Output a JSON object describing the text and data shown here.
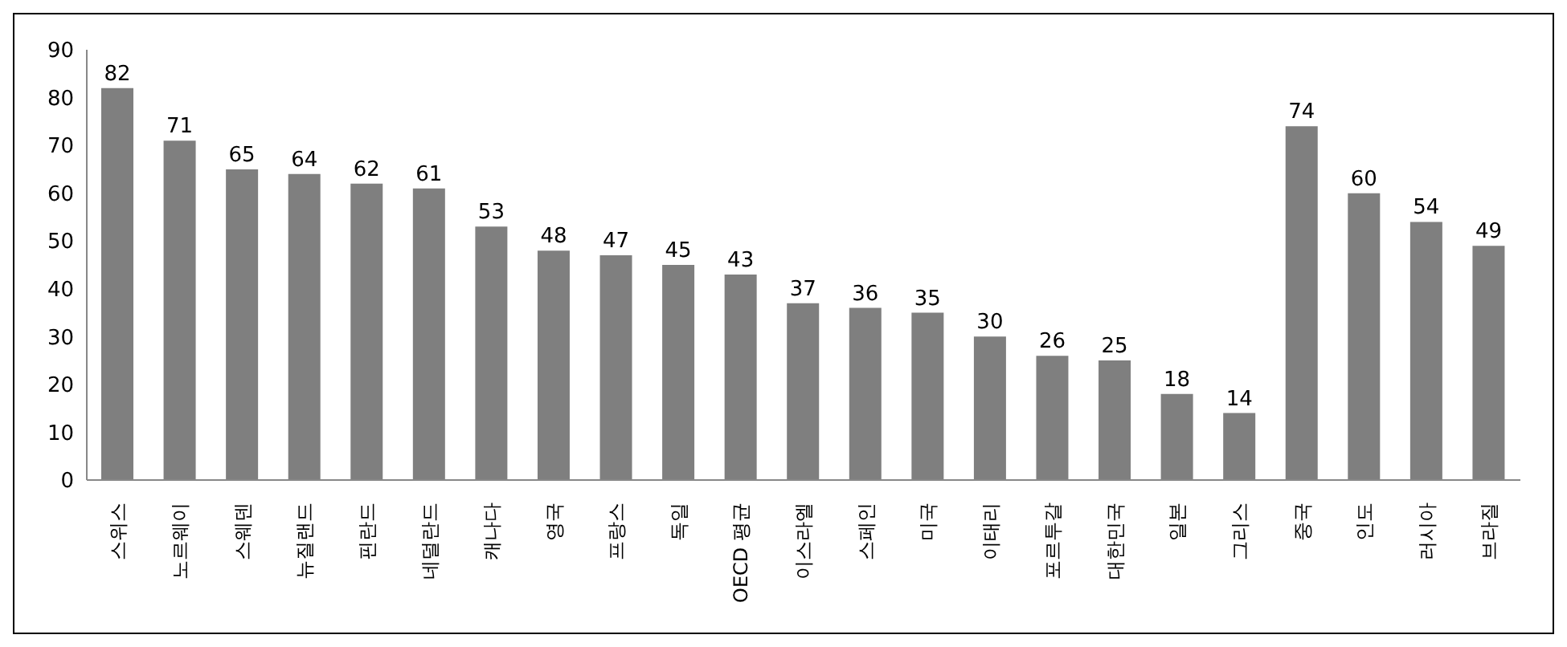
{
  "chart_data": {
    "type": "bar",
    "categories": [
      "스위스",
      "노르웨이",
      "스웨덴",
      "뉴질랜드",
      "핀란드",
      "네덜란드",
      "캐나다",
      "영국",
      "프랑스",
      "독일",
      "OECD 평균",
      "이스라엘",
      "스페인",
      "미국",
      "이태리",
      "포르투갈",
      "대한민국",
      "일본",
      "그리스",
      "중국",
      "인도",
      "러시아",
      "브라질"
    ],
    "values": [
      82,
      71,
      65,
      64,
      62,
      61,
      53,
      48,
      47,
      45,
      43,
      37,
      36,
      35,
      30,
      26,
      25,
      18,
      14,
      74,
      60,
      54,
      49
    ],
    "color": "#7f7f7f",
    "ylim": [
      0,
      90
    ],
    "yticks": [
      0,
      10,
      20,
      30,
      40,
      50,
      60,
      70,
      80,
      90
    ],
    "data_labels": true
  }
}
